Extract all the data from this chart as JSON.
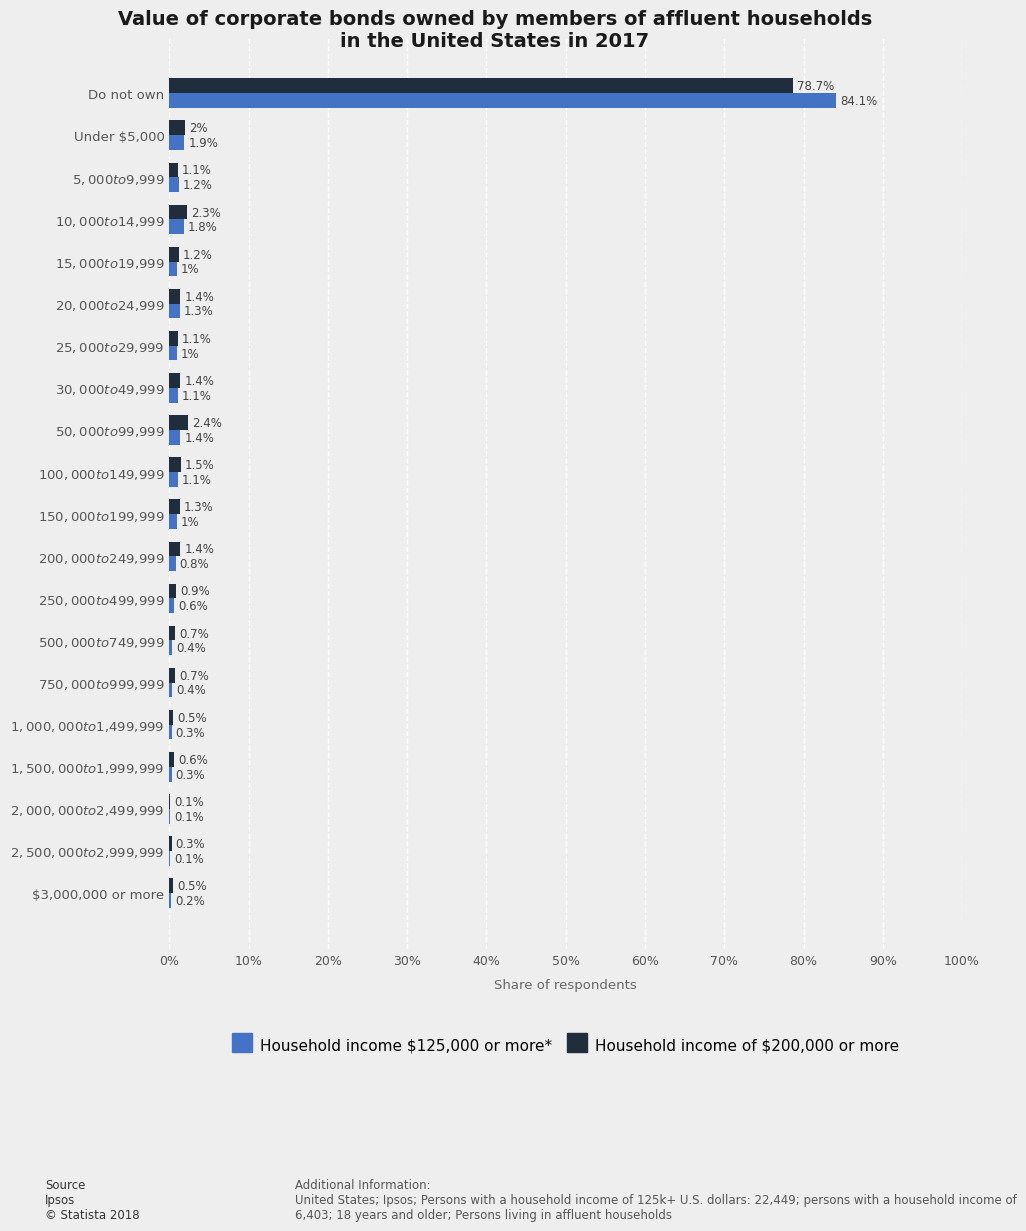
{
  "title": "Value of corporate bonds owned by members of affluent households\nin the United States in 2017",
  "categories": [
    "Do not own",
    "Under $5,000",
    "$5,000 to $9,999",
    "$10,000 to $14,999",
    "$15,000 to $19,999",
    "$20,000 to $24,999",
    "$25,000 to $29,999",
    "$30,000 to $49,999",
    "$50,000 to $99,999",
    "$100,000 to $149,999",
    "$150,000 to $199,999",
    "$200,000 to $249,999",
    "$250,000 to $499,999",
    "$500,000 to $749,999",
    "$750,000 to $999,999",
    "$1,000,000 to $1,499,999",
    "$1,500,000 to $1,999,999",
    "$2,000,000 to $2,499,999",
    "$2,500,000 to $2,999,999",
    "$3,000,000 or more"
  ],
  "series1_values": [
    84.1,
    1.9,
    1.2,
    1.8,
    1.0,
    1.3,
    1.0,
    1.1,
    1.4,
    1.1,
    1.0,
    0.8,
    0.6,
    0.4,
    0.4,
    0.3,
    0.3,
    0.1,
    0.1,
    0.2
  ],
  "series2_values": [
    78.7,
    2.0,
    1.1,
    2.3,
    1.2,
    1.4,
    1.1,
    1.4,
    2.4,
    1.5,
    1.3,
    1.4,
    0.9,
    0.7,
    0.7,
    0.5,
    0.6,
    0.1,
    0.3,
    0.5
  ],
  "series1_label": "Household income $125,000 or more*",
  "series2_label": "Household income of $200,000 or more",
  "series1_color": "#4472C4",
  "series2_color": "#1F2D3D",
  "series1_labels": [
    "84.1%",
    "1.9%",
    "1.2%",
    "1.8%",
    "1%",
    "1.3%",
    "1%",
    "1.1%",
    "1.4%",
    "1.1%",
    "1%",
    "0.8%",
    "0.6%",
    "0.4%",
    "0.4%",
    "0.3%",
    "0.3%",
    "0.1%",
    "0.1%",
    "0.2%"
  ],
  "series2_labels": [
    "78.7%",
    "2%",
    "1.1%",
    "2.3%",
    "1.2%",
    "1.4%",
    "1.1%",
    "1.4%",
    "2.4%",
    "1.5%",
    "1.3%",
    "1.4%",
    "0.9%",
    "0.7%",
    "0.7%",
    "0.5%",
    "0.6%",
    "0.1%",
    "0.3%",
    "0.5%"
  ],
  "xlabel": "Share of respondents",
  "xlim": [
    0,
    100
  ],
  "xticks": [
    0,
    10,
    20,
    30,
    40,
    50,
    60,
    70,
    80,
    90,
    100
  ],
  "xtick_labels": [
    "0%",
    "10%",
    "20%",
    "30%",
    "40%",
    "50%",
    "60%",
    "70%",
    "80%",
    "90%",
    "100%"
  ],
  "background_color": "#eeeeee",
  "plot_background_color": "#eeeeee",
  "source_text": "Source\nIpsos\n© Statista 2018",
  "additional_text": "Additional Information:\nUnited States; Ipsos; Persons with a household income of 125k+ U.S. dollars: 22,449; persons with a household income of\n6,403; 18 years and older; Persons living in affluent households"
}
